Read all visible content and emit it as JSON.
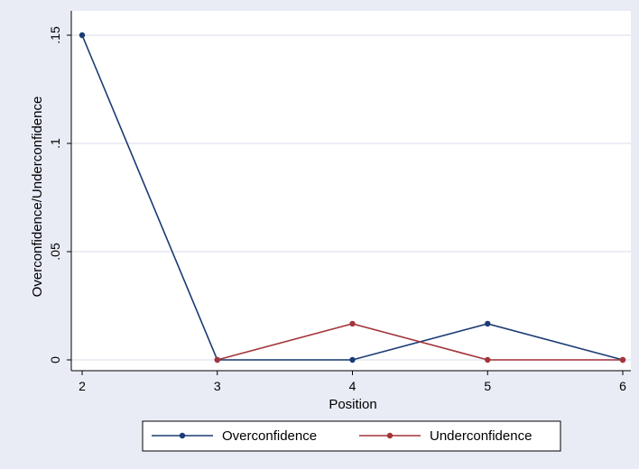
{
  "chart_data": {
    "type": "line",
    "title": "",
    "xlabel": "Position",
    "ylabel": "Overconfidence/Underconfidence",
    "x": [
      2,
      3,
      4,
      5,
      6
    ],
    "xlim": [
      2,
      6
    ],
    "ylim": [
      0,
      0.15
    ],
    "x_ticks": [
      2,
      3,
      4,
      5,
      6
    ],
    "x_tick_labels": [
      "2",
      "3",
      "4",
      "5",
      "6"
    ],
    "y_ticks": [
      0,
      0.05,
      0.1,
      0.15
    ],
    "y_tick_labels": [
      "0",
      ".05",
      ".1",
      ".15"
    ],
    "grid": true,
    "legend_position": "bottom",
    "series": [
      {
        "name": "Overconfidence",
        "color": "#1a3b73",
        "values": [
          0.15,
          0,
          0,
          0.0167,
          0
        ]
      },
      {
        "name": "Underconfidence",
        "color": "#a3353a",
        "values": [
          null,
          0,
          0.0167,
          0,
          0
        ]
      }
    ],
    "colors": {
      "outer_background": "#e9ecf5",
      "plot_background": "#ffffff",
      "gridline": "#e6e9f2"
    }
  }
}
